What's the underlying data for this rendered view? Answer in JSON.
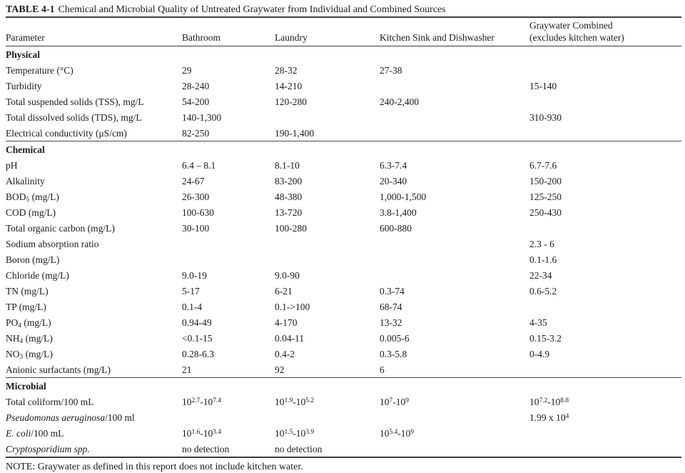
{
  "title": {
    "label": "TABLE 4-1",
    "text": "Chemical and Microbial Quality of Untreated Graywater from Individual and Combined Sources"
  },
  "table": {
    "columns": [
      "Parameter",
      "Bathroom",
      "Laundry",
      "Kitchen Sink and Dishwasher",
      "Graywater Combined\n(excludes kitchen water)"
    ],
    "sections": [
      {
        "name": "Physical",
        "rows": [
          {
            "parameter": "Temperature (°C)",
            "values": [
              "29",
              "28-32",
              "27-38",
              ""
            ]
          },
          {
            "parameter": "Turbidity",
            "values": [
              "28-240",
              "14-210",
              "",
              "15-140"
            ]
          },
          {
            "parameter": "Total suspended solids (TSS), mg/L",
            "values": [
              "54-200",
              "120-280",
              "240-2,400",
              ""
            ]
          },
          {
            "parameter": "Total dissolved solids (TDS), mg/L",
            "values": [
              "140-1,300",
              "",
              "",
              "310-930"
            ]
          },
          {
            "parameter": "Electrical conductivity (μS/cm)",
            "values": [
              "82-250",
              "190-1,400",
              "",
              ""
            ]
          }
        ]
      },
      {
        "name": "Chemical",
        "rows": [
          {
            "parameter": "pH",
            "values": [
              "6.4 – 8.1",
              "8.1-10",
              "6.3-7.4",
              "6.7-7.6"
            ]
          },
          {
            "parameter": "Alkalinity",
            "values": [
              "24-67",
              "83-200",
              "20-340",
              "150-200"
            ]
          },
          {
            "parameter": "BOD_{5} (mg/L)",
            "values": [
              "26-300",
              "48-380",
              "1,000-1,500",
              "125-250"
            ]
          },
          {
            "parameter": "COD (mg/L)",
            "values": [
              "100-630",
              "13-720",
              "3.8-1,400",
              "250-430"
            ]
          },
          {
            "parameter": "Total organic carbon (mg/L)",
            "values": [
              "30-100",
              "100-280",
              "600-880",
              ""
            ]
          },
          {
            "parameter": "Sodium absorption ratio",
            "values": [
              "",
              "",
              "",
              "2.3 - 6"
            ]
          },
          {
            "parameter": "Boron (mg/L)",
            "values": [
              "",
              "",
              "",
              "0.1-1.6"
            ]
          },
          {
            "parameter": "Chloride (mg/L)",
            "values": [
              "9.0-19",
              "9.0-90",
              "",
              "22-34"
            ]
          },
          {
            "parameter": "TN (mg/L)",
            "values": [
              "5-17",
              "6-21",
              "0.3-74",
              "0.6-5.2"
            ]
          },
          {
            "parameter": "TP (mg/L)",
            "values": [
              "0.1-4",
              "0.1->100",
              "68-74",
              ""
            ]
          },
          {
            "parameter": "PO_{4} (mg/L)",
            "values": [
              "0.94-49",
              "4-170",
              "13-32",
              "4-35"
            ]
          },
          {
            "parameter": "NH_{4} (mg/L)",
            "values": [
              "<0.1-15",
              "0.04-11",
              "0.005-6",
              "0.15-3.2"
            ]
          },
          {
            "parameter": "NO_{3} (mg/L)",
            "values": [
              "0.28-6.3",
              "0.4-2",
              "0.3-5.8",
              "0-4.9"
            ]
          },
          {
            "parameter": "Anionic surfactants (mg/L)",
            "values": [
              "21",
              "92",
              "6",
              ""
            ]
          }
        ]
      },
      {
        "name": "Microbial",
        "rows": [
          {
            "parameter": "Total coliform/100 mL",
            "values": [
              "10^{2.7}-10^{7.4}",
              "10^{1.9}-10^{5.2}",
              "10^{7}-10^{9}",
              "10^{7.2}-10^{8.8}"
            ]
          },
          {
            "parameter": "*Pseudomonas aeruginosa*/100 ml",
            "values": [
              "",
              "",
              "",
              "1.99 x 10^{4}"
            ]
          },
          {
            "parameter": "*E. coli*/100 mL",
            "values": [
              "10^{1.6}-10^{3.4}",
              "10^{1.5}-10^{3.9}",
              "10^{5.4}-10^{9}",
              ""
            ]
          },
          {
            "parameter": "*Cryptosporidium spp.*",
            "values": [
              "no detection",
              "no detection",
              "",
              ""
            ]
          }
        ]
      }
    ]
  },
  "note": "NOTE: Graywater as defined in this report does not include kitchen water."
}
